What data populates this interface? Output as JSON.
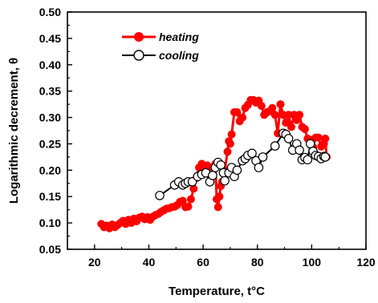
{
  "chart_data": {
    "type": "line",
    "xlabel": "Temperature, t°C",
    "ylabel": "Logarithmic decrement, θ",
    "xlim": [
      10,
      120
    ],
    "ylim": [
      0.05,
      0.5
    ],
    "xticks": [
      20,
      40,
      60,
      80,
      100,
      120
    ],
    "yticks": [
      0.05,
      0.1,
      0.15,
      0.2,
      0.25,
      0.3,
      0.35,
      0.4,
      0.45,
      0.5
    ],
    "x_tick_labels": [
      "20",
      "40",
      "60",
      "80",
      "100",
      "120"
    ],
    "y_tick_labels": [
      "0.05",
      "0.10",
      "0.15",
      "0.20",
      "0.25",
      "0.30",
      "0.35",
      "0.40",
      "0.45",
      "0.50"
    ],
    "legend_position": "top-left",
    "series": [
      {
        "name": "heating",
        "color": "#ff0000",
        "marker": "filled-circle",
        "points": [
          [
            22.5,
            0.098
          ],
          [
            23.5,
            0.092
          ],
          [
            24.5,
            0.095
          ],
          [
            25.5,
            0.09
          ],
          [
            26.5,
            0.097
          ],
          [
            27.5,
            0.092
          ],
          [
            28.5,
            0.096
          ],
          [
            29.5,
            0.1
          ],
          [
            30.5,
            0.104
          ],
          [
            31.5,
            0.098
          ],
          [
            32.5,
            0.106
          ],
          [
            33.5,
            0.1
          ],
          [
            34.5,
            0.108
          ],
          [
            35.5,
            0.103
          ],
          [
            36.5,
            0.11
          ],
          [
            37.5,
            0.112
          ],
          [
            38.5,
            0.107
          ],
          [
            39.5,
            0.111
          ],
          [
            40.5,
            0.106
          ],
          [
            41.5,
            0.112
          ],
          [
            42.5,
            0.115
          ],
          [
            43.5,
            0.117
          ],
          [
            44.5,
            0.121
          ],
          [
            45.5,
            0.124
          ],
          [
            46.5,
            0.127
          ],
          [
            47.5,
            0.128
          ],
          [
            48.5,
            0.13
          ],
          [
            49.5,
            0.131
          ],
          [
            50.5,
            0.134
          ],
          [
            51.5,
            0.14
          ],
          [
            52.5,
            0.142
          ],
          [
            53.5,
            0.13
          ],
          [
            54.5,
            0.131
          ],
          [
            55.5,
            0.145
          ],
          [
            56.5,
            0.165
          ],
          [
            57.5,
            0.185
          ],
          [
            58.5,
            0.205
          ],
          [
            59.5,
            0.212
          ],
          [
            60.5,
            0.205
          ],
          [
            61.5,
            0.209
          ],
          [
            62.5,
            0.198
          ],
          [
            63.5,
            0.205
          ],
          [
            64.5,
            0.212
          ],
          [
            65.0,
            0.145
          ],
          [
            65.5,
            0.13
          ],
          [
            66.0,
            0.15
          ],
          [
            66.5,
            0.17
          ],
          [
            67.0,
            0.178
          ],
          [
            68.0,
            0.2
          ],
          [
            69.0,
            0.235
          ],
          [
            69.5,
            0.255
          ],
          [
            70.0,
            0.25
          ],
          [
            70.5,
            0.268
          ],
          [
            71.5,
            0.31
          ],
          [
            72.5,
            0.31
          ],
          [
            73.5,
            0.293
          ],
          [
            74.5,
            0.3
          ],
          [
            75.5,
            0.318
          ],
          [
            76.5,
            0.324
          ],
          [
            77.5,
            0.333
          ],
          [
            78.5,
            0.333
          ],
          [
            79.5,
            0.328
          ],
          [
            80.5,
            0.332
          ],
          [
            81.5,
            0.322
          ],
          [
            82.5,
            0.305
          ],
          [
            83.5,
            0.31
          ],
          [
            84.5,
            0.312
          ],
          [
            85.5,
            0.318
          ],
          [
            86.5,
            0.305
          ],
          [
            87.5,
            0.27
          ],
          [
            88.5,
            0.325
          ],
          [
            89.5,
            0.305
          ],
          [
            90.5,
            0.29
          ],
          [
            91.5,
            0.305
          ],
          [
            92.5,
            0.282
          ],
          [
            93.5,
            0.305
          ],
          [
            94.5,
            0.295
          ],
          [
            95.5,
            0.305
          ],
          [
            96.5,
            0.282
          ],
          [
            97.5,
            0.278
          ],
          [
            98.5,
            0.26
          ],
          [
            99.5,
            0.258
          ],
          [
            100.5,
            0.244
          ],
          [
            101.5,
            0.262
          ],
          [
            102.5,
            0.262
          ],
          [
            103.5,
            0.245
          ],
          [
            104.5,
            0.25
          ],
          [
            105.0,
            0.26
          ],
          [
            105.5,
            0.225
          ]
        ]
      },
      {
        "name": "cooling",
        "color": "#000000",
        "marker": "open-circle",
        "points": [
          [
            44.0,
            0.152
          ],
          [
            49.5,
            0.172
          ],
          [
            51.0,
            0.178
          ],
          [
            52.5,
            0.172
          ],
          [
            53.5,
            0.175
          ],
          [
            54.5,
            0.178
          ],
          [
            56.0,
            0.178
          ],
          [
            58.0,
            0.188
          ],
          [
            59.5,
            0.192
          ],
          [
            61.0,
            0.195
          ],
          [
            62.5,
            0.178
          ],
          [
            63.5,
            0.19
          ],
          [
            64.5,
            0.205
          ],
          [
            65.5,
            0.215
          ],
          [
            66.5,
            0.21
          ],
          [
            67.5,
            0.195
          ],
          [
            68.0,
            0.18
          ],
          [
            69.5,
            0.195
          ],
          [
            70.5,
            0.205
          ],
          [
            71.5,
            0.188
          ],
          [
            72.5,
            0.2
          ],
          [
            74.5,
            0.218
          ],
          [
            75.5,
            0.222
          ],
          [
            76.5,
            0.228
          ],
          [
            78.0,
            0.232
          ],
          [
            79.5,
            0.218
          ],
          [
            80.5,
            0.205
          ],
          [
            82.0,
            0.225
          ],
          [
            86.5,
            0.246
          ],
          [
            89.5,
            0.27
          ],
          [
            90.5,
            0.268
          ],
          [
            91.5,
            0.26
          ],
          [
            93.0,
            0.238
          ],
          [
            94.5,
            0.25
          ],
          [
            95.5,
            0.238
          ],
          [
            96.5,
            0.22
          ],
          [
            97.5,
            0.224
          ],
          [
            98.5,
            0.22
          ],
          [
            99.5,
            0.25
          ],
          [
            100.5,
            0.236
          ],
          [
            101.5,
            0.228
          ],
          [
            102.5,
            0.226
          ],
          [
            103.5,
            0.222
          ],
          [
            104.5,
            0.226
          ],
          [
            105.0,
            0.225
          ]
        ]
      }
    ]
  }
}
